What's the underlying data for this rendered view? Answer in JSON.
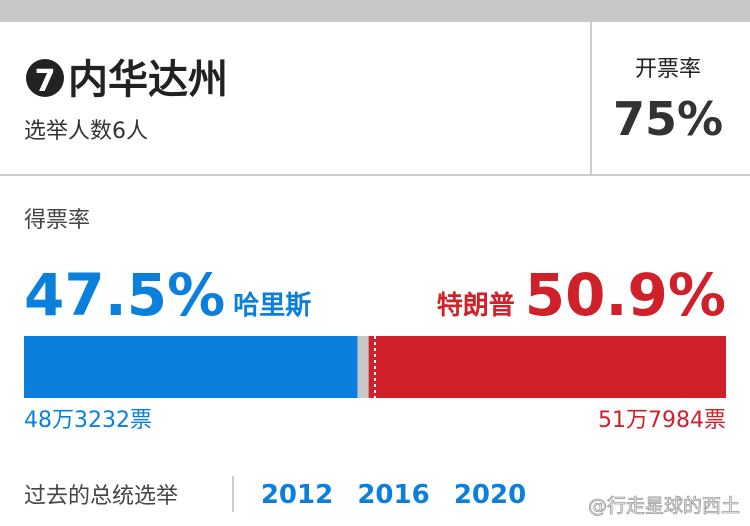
{
  "header": {
    "number": "7",
    "state": "内华达州",
    "electors": "选举人数6人",
    "counted_label": "开票率",
    "counted": "75%"
  },
  "result": {
    "label": "得票率",
    "candidates": [
      {
        "name": "哈里斯",
        "share": 47.5,
        "share_label": "47.5%",
        "votes": "48万3232票",
        "color": "#0a80dc"
      },
      {
        "name": "特朗普",
        "share": 50.9,
        "share_label": "50.9%",
        "votes": "51万7984票",
        "color": "#d0202a"
      }
    ]
  },
  "past": {
    "label": "过去的总统选举",
    "years": [
      "2012",
      "2016",
      "2020"
    ]
  },
  "watermark": "@行走星球的西土"
}
